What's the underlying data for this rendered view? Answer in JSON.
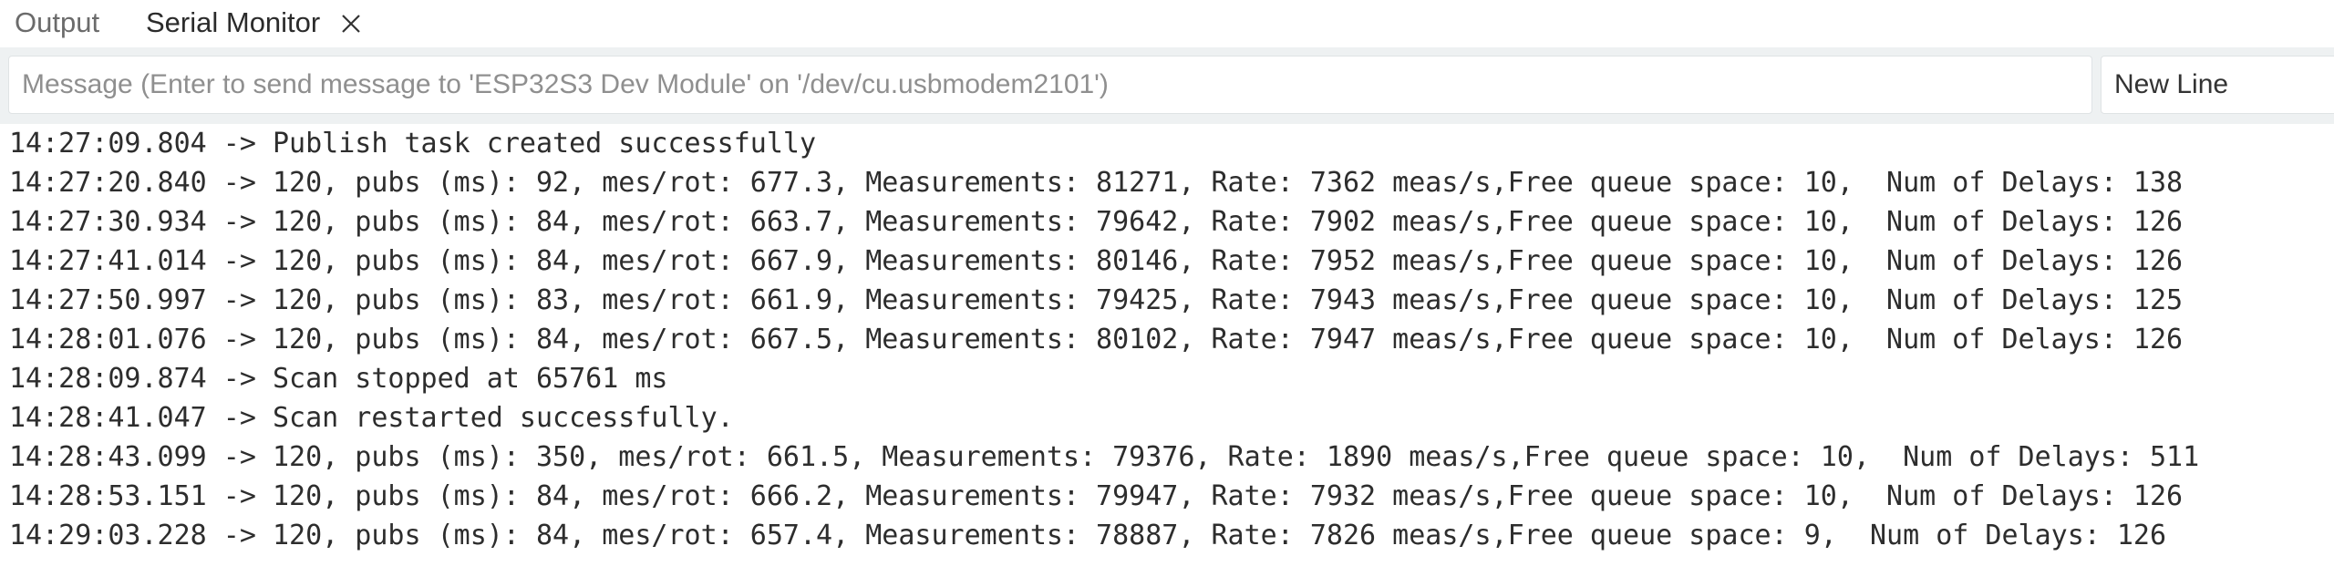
{
  "tabs": [
    {
      "label": "Output"
    },
    {
      "label": "Serial Monitor"
    }
  ],
  "message_input": {
    "value": "",
    "placeholder": "Message (Enter to send message to 'ESP32S3 Dev Module' on '/dev/cu.usbmodem2101')"
  },
  "line_ending": {
    "selected": "New Line"
  },
  "log": [
    "14:27:09.804 -> Publish task created successfully",
    "14:27:20.840 -> 120, pubs (ms): 92, mes/rot: 677.3, Measurements: 81271, Rate: 7362 meas/s,Free queue space: 10,  Num of Delays: 138",
    "14:27:30.934 -> 120, pubs (ms): 84, mes/rot: 663.7, Measurements: 79642, Rate: 7902 meas/s,Free queue space: 10,  Num of Delays: 126",
    "14:27:41.014 -> 120, pubs (ms): 84, mes/rot: 667.9, Measurements: 80146, Rate: 7952 meas/s,Free queue space: 10,  Num of Delays: 126",
    "14:27:50.997 -> 120, pubs (ms): 83, mes/rot: 661.9, Measurements: 79425, Rate: 7943 meas/s,Free queue space: 10,  Num of Delays: 125",
    "14:28:01.076 -> 120, pubs (ms): 84, mes/rot: 667.5, Measurements: 80102, Rate: 7947 meas/s,Free queue space: 10,  Num of Delays: 126",
    "14:28:09.874 -> Scan stopped at 65761 ms",
    "14:28:41.047 -> Scan restarted successfully.",
    "14:28:43.099 -> 120, pubs (ms): 350, mes/rot: 661.5, Measurements: 79376, Rate: 1890 meas/s,Free queue space: 10,  Num of Delays: 511",
    "14:28:53.151 -> 120, pubs (ms): 84, mes/rot: 666.2, Measurements: 79947, Rate: 7932 meas/s,Free queue space: 10,  Num of Delays: 126",
    "14:29:03.228 -> 120, pubs (ms): 84, mes/rot: 657.4, Measurements: 78887, Rate: 7826 meas/s,Free queue space: 9,  Num of Delays: 126"
  ]
}
